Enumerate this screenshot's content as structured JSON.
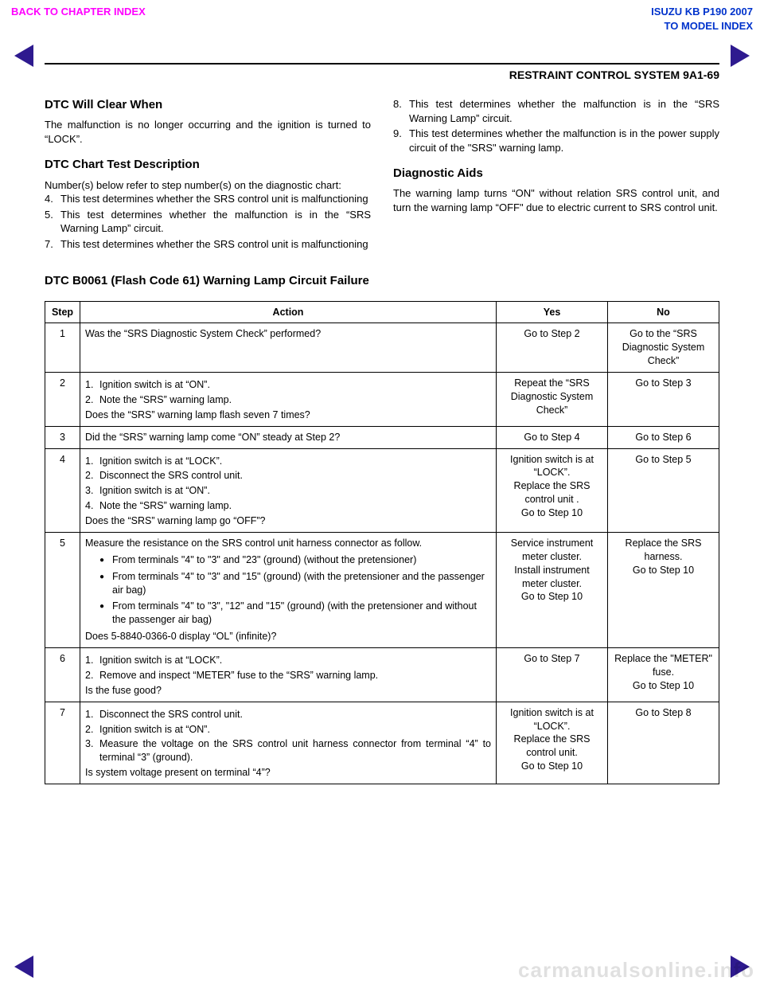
{
  "nav": {
    "back": "BACK TO CHAPTER INDEX",
    "model_line1": "ISUZU KB P190 2007",
    "model_line2": "TO MODEL INDEX"
  },
  "header": "RESTRAINT CONTROL SYSTEM  9A1-69",
  "left_col": {
    "h1": "DTC Will Clear When",
    "p1": "The malfunction is no longer occurring and the ignition is turned to “LOCK”.",
    "h2": "DTC Chart Test Description",
    "p2": "Number(s) below refer to step number(s) on the diagnostic chart:",
    "items": [
      {
        "n": "4.",
        "t": "This test determines whether the SRS control unit is malfunctioning"
      },
      {
        "n": "5.",
        "t": "This test determines whether the malfunction is in the “SRS Warning Lamp” circuit."
      },
      {
        "n": "7.",
        "t": "This test determines whether the SRS control unit is malfunctioning"
      }
    ]
  },
  "right_col": {
    "items": [
      {
        "n": "8.",
        "t": "This test determines whether the malfunction is in the “SRS Warning Lamp” circuit."
      },
      {
        "n": "9.",
        "t": "This test determines whether the malfunction is in the power supply circuit of the \"SRS\" warning lamp."
      }
    ],
    "h": "Diagnostic Aids",
    "p": "The warning lamp turns “ON\" without relation SRS control unit, and turn the warning lamp “OFF\" due to electric current to SRS control unit."
  },
  "dtc_title": "DTC B0061 (Flash Code 61) Warning Lamp Circuit Failure",
  "table": {
    "head": {
      "step": "Step",
      "action": "Action",
      "yes": "Yes",
      "no": "No"
    },
    "rows": [
      {
        "step": "1",
        "action_text": "Was the “SRS Diagnostic System Check” performed?",
        "yes": "Go to Step 2",
        "no": "Go to the “SRS Diagnostic System Check”"
      },
      {
        "step": "2",
        "sub": [
          {
            "nn": "1.",
            "tt": "Ignition switch is at “ON”."
          },
          {
            "nn": "2.",
            "tt": "Note the “SRS” warning lamp."
          }
        ],
        "tail": "Does the “SRS” warning lamp flash seven 7 times?",
        "yes": "Repeat the “SRS Diagnostic System Check”",
        "no": "Go to Step 3"
      },
      {
        "step": "3",
        "action_text": "Did the “SRS” warning lamp come “ON” steady at Step 2?",
        "yes": "Go to Step 4",
        "no": "Go to Step 6"
      },
      {
        "step": "4",
        "sub": [
          {
            "nn": "1.",
            "tt": "Ignition switch is at “LOCK”."
          },
          {
            "nn": "2.",
            "tt": "Disconnect the SRS control unit."
          },
          {
            "nn": "3.",
            "tt": "Ignition switch is at “ON”."
          },
          {
            "nn": "4.",
            "tt": "Note the “SRS” warning lamp."
          }
        ],
        "tail": "Does the “SRS” warning lamp go “OFF”?",
        "yes": "Ignition switch is at “LOCK”.\nReplace the SRS control unit .\nGo to Step 10",
        "no": "Go to Step 5"
      },
      {
        "step": "5",
        "lead": "Measure the resistance on the SRS control unit harness connector as follow.",
        "bullets": [
          "From terminals \"4\" to \"3\" and \"23\" (ground) (without the pretensioner)",
          "From terminals \"4\" to \"3\" and \"15\" (ground) (with the pretensioner and the passenger air bag)",
          "From terminals \"4\" to \"3\", \"12\" and \"15\" (ground) (with the pretensioner and without the passenger air bag)"
        ],
        "tail": "Does 5-8840-0366-0 display “OL” (infinite)?",
        "yes": "Service instrument meter cluster.\nInstall instrument meter cluster.\nGo to Step 10",
        "no": "Replace the SRS harness.\nGo to Step 10"
      },
      {
        "step": "6",
        "sub": [
          {
            "nn": "1.",
            "tt": "Ignition switch is at “LOCK”."
          },
          {
            "nn": "2.",
            "tt": "Remove and inspect “METER” fuse to the “SRS” warning lamp."
          }
        ],
        "tail": "Is the fuse good?",
        "yes": "Go to Step 7",
        "no": "Replace the \"METER\" fuse.\nGo to Step 10"
      },
      {
        "step": "7",
        "sub": [
          {
            "nn": "1.",
            "tt": "Disconnect the SRS control unit."
          },
          {
            "nn": "2.",
            "tt": "Ignition switch is at “ON”."
          },
          {
            "nn": "3.",
            "tt": "Measure the voltage on the SRS control unit harness connector from terminal “4” to terminal “3” (ground)."
          }
        ],
        "tail": "Is system voltage present on terminal “4”?",
        "yes": "Ignition switch is at “LOCK”.\nReplace the SRS control unit.\nGo to Step 10",
        "no": "Go to Step 8"
      }
    ]
  },
  "watermark": "carmanualsonline.info"
}
